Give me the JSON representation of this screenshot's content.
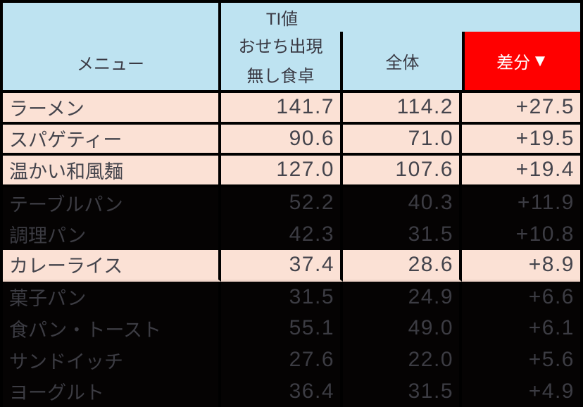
{
  "table": {
    "header": {
      "menu": "メニュー",
      "ti_title": "TI値",
      "ti_sub_line1": "おせち出現",
      "ti_sub_line2": "無し食卓",
      "overall": "全体",
      "diff_text": "差分",
      "diff_arrow": "▼"
    },
    "rows": [
      {
        "name": "ラーメン",
        "ti_no_osechi": "141.7",
        "overall": "114.2",
        "diff": "+27.5",
        "highlighted": true,
        "dimmed": false
      },
      {
        "name": "スパゲティー",
        "ti_no_osechi": "90.6",
        "overall": "71.0",
        "diff": "+19.5",
        "highlighted": true,
        "dimmed": false
      },
      {
        "name": "温かい和風麺",
        "ti_no_osechi": "127.0",
        "overall": "107.6",
        "diff": "+19.4",
        "highlighted": true,
        "dimmed": false
      },
      {
        "name": "テーブルパン",
        "ti_no_osechi": "52.2",
        "overall": "40.3",
        "diff": "+11.9",
        "highlighted": false,
        "dimmed": true
      },
      {
        "name": "調理パン",
        "ti_no_osechi": "42.3",
        "overall": "31.5",
        "diff": "+10.8",
        "highlighted": false,
        "dimmed": true
      },
      {
        "name": "カレーライス",
        "ti_no_osechi": "37.4",
        "overall": "28.6",
        "diff": "+8.9",
        "highlighted": true,
        "dimmed": false
      },
      {
        "name": "菓子パン",
        "ti_no_osechi": "31.5",
        "overall": "24.9",
        "diff": "+6.6",
        "highlighted": false,
        "dimmed": true
      },
      {
        "name": "食パン・トースト",
        "ti_no_osechi": "55.1",
        "overall": "49.0",
        "diff": "+6.1",
        "highlighted": false,
        "dimmed": true
      },
      {
        "name": "サンドイッチ",
        "ti_no_osechi": "27.6",
        "overall": "22.0",
        "diff": "+5.6",
        "highlighted": false,
        "dimmed": true
      },
      {
        "name": "ヨーグルト",
        "ti_no_osechi": "36.4",
        "overall": "31.5",
        "diff": "+4.9",
        "highlighted": false,
        "dimmed": true
      }
    ],
    "colors": {
      "header_blue": "#BEE3F1",
      "highlight_pink": "#FBE1D5",
      "diff_header_red": "#FF0000",
      "dimmed_row_black": "#050303",
      "border_black": "#000000",
      "diff_header_text_white": "#FFFFFF"
    }
  },
  "chart_data": {
    "type": "table",
    "columns": [
      "メニュー",
      "TI値 おせち出現無し食卓",
      "TI値 全体",
      "差分▼"
    ],
    "rows": [
      {
        "menu": "ラーメン",
        "ti_no_osechi": 141.7,
        "overall": 114.2,
        "diff": 27.5
      },
      {
        "menu": "スパゲティー",
        "ti_no_osechi": 90.6,
        "overall": 71.0,
        "diff": 19.5
      },
      {
        "menu": "温かい和風麺",
        "ti_no_osechi": 127.0,
        "overall": 107.6,
        "diff": 19.4
      },
      {
        "menu": "テーブルパン",
        "ti_no_osechi": 52.2,
        "overall": 40.3,
        "diff": 11.9
      },
      {
        "menu": "調理パン",
        "ti_no_osechi": 42.3,
        "overall": 31.5,
        "diff": 10.8
      },
      {
        "menu": "カレーライス",
        "ti_no_osechi": 37.4,
        "overall": 28.6,
        "diff": 8.9
      },
      {
        "menu": "菓子パン",
        "ti_no_osechi": 31.5,
        "overall": 24.9,
        "diff": 6.6
      },
      {
        "menu": "食パン・トースト",
        "ti_no_osechi": 55.1,
        "overall": 49.0,
        "diff": 6.1
      },
      {
        "menu": "サンドイッチ",
        "ti_no_osechi": 27.6,
        "overall": 22.0,
        "diff": 5.6
      },
      {
        "menu": "ヨーグルト",
        "ti_no_osechi": 36.4,
        "overall": 31.5,
        "diff": 4.9
      }
    ],
    "highlighted_rows": [
      "ラーメン",
      "スパゲティー",
      "温かい和風麺",
      "カレーライス"
    ],
    "dimmed_rows": [
      "テーブルパン",
      "調理パン",
      "菓子パン",
      "食パン・トースト",
      "サンドイッチ",
      "ヨーグルト"
    ],
    "sort": "diff descending"
  }
}
